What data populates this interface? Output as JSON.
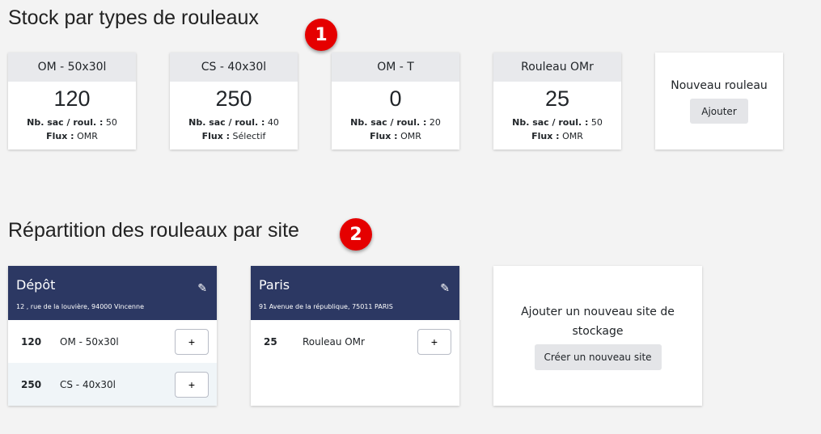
{
  "section1": {
    "title": "Stock par types de rouleaux",
    "badge": "1"
  },
  "section2": {
    "title": "Répartition des rouleaux par site",
    "badge": "2"
  },
  "labels": {
    "bags": "Nb. sac / roul. :",
    "flux": "Flux :"
  },
  "rolls": [
    {
      "name": "OM - 50x30l",
      "stock": "120",
      "bags": "50",
      "flux": "OMR"
    },
    {
      "name": "CS - 40x30l",
      "stock": "250",
      "bags": "40",
      "flux": "Sélectif"
    },
    {
      "name": "OM - T",
      "stock": "0",
      "bags": "20",
      "flux": "OMR"
    },
    {
      "name": "Rouleau OMr",
      "stock": "25",
      "bags": "50",
      "flux": "OMR"
    }
  ],
  "new_roll": {
    "title": "Nouveau rouleau",
    "button": "Ajouter"
  },
  "sites": [
    {
      "name": "Dépôt",
      "address": "12 , rue de la louvière, 94000 Vincenne",
      "items": [
        {
          "qty": "120",
          "label": "OM - 50x30l"
        },
        {
          "qty": "250",
          "label": "CS - 40x30l"
        }
      ]
    },
    {
      "name": "Paris",
      "address": "91 Avenue de la république, 75011 PARIS",
      "items": [
        {
          "qty": "25",
          "label": "Rouleau OMr"
        }
      ]
    }
  ],
  "new_site": {
    "title": "Ajouter un nouveau site de stockage",
    "button": "Créer un nouveau site"
  },
  "icons": {
    "edit": "pencil-icon",
    "add": "+"
  },
  "colors": {
    "site_header": "#2c3863",
    "badge": "#e50000"
  }
}
